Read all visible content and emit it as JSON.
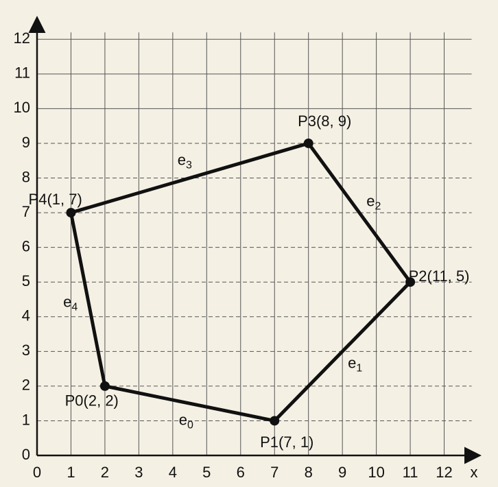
{
  "chart_data": {
    "type": "polygon",
    "points": [
      {
        "label": "P0(2, 2)",
        "x": 2,
        "y": 2
      },
      {
        "label": "P1(7, 1)",
        "x": 7,
        "y": 1
      },
      {
        "label": "P2(11, 5)",
        "x": 11,
        "y": 5
      },
      {
        "label": "P3(8, 9)",
        "x": 8,
        "y": 9
      },
      {
        "label": "P4(1, 7)",
        "x": 1,
        "y": 7
      }
    ],
    "edges": [
      {
        "label": "e",
        "subscript": "0"
      },
      {
        "label": "e",
        "subscript": "1"
      },
      {
        "label": "e",
        "subscript": "2"
      },
      {
        "label": "e",
        "subscript": "3"
      },
      {
        "label": "e",
        "subscript": "4"
      }
    ],
    "x_label": "x",
    "xlim": [
      0,
      13
    ],
    "ylim": [
      0,
      12.5
    ],
    "xticks": [
      0,
      1,
      2,
      3,
      4,
      5,
      6,
      7,
      8,
      9,
      10,
      11,
      12
    ],
    "yticks": [
      0,
      1,
      2,
      3,
      4,
      5,
      6,
      7,
      8,
      9,
      10,
      11,
      12
    ],
    "grid": true,
    "color": "#111111"
  }
}
